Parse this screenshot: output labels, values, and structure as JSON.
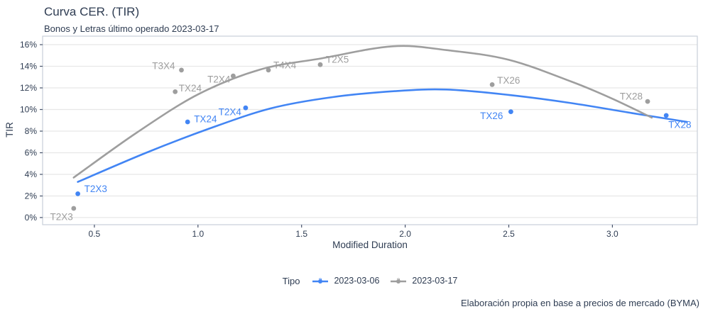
{
  "header": {
    "title": "Curva CER. (TIR)",
    "subtitle": "Bonos y Letras último operado 2023-03-17"
  },
  "footer": {
    "credit": "Elaboración propia en base a precios de mercado (BYMA)"
  },
  "chart_data": {
    "type": "scatter",
    "title": "Curva CER. (TIR)",
    "subtitle": "Bonos y Letras último operado 2023-03-17",
    "xlabel": "Modified Duration",
    "ylabel": "TIR",
    "xlim": [
      0.25,
      3.41
    ],
    "ylim": [
      -0.66,
      16.79
    ],
    "grid": "horizontal-major-only",
    "x_ticks": [
      {
        "value": 0.5,
        "label": "0.5"
      },
      {
        "value": 1.0,
        "label": "1.0"
      },
      {
        "value": 1.5,
        "label": "1.5"
      },
      {
        "value": 2.0,
        "label": "2.0"
      },
      {
        "value": 2.5,
        "label": "2.5"
      },
      {
        "value": 3.0,
        "label": "3.0"
      }
    ],
    "y_ticks": [
      {
        "value": 0,
        "label": "0%"
      },
      {
        "value": 2,
        "label": "2%"
      },
      {
        "value": 4,
        "label": "4%"
      },
      {
        "value": 6,
        "label": "6%"
      },
      {
        "value": 8,
        "label": "8%"
      },
      {
        "value": 10,
        "label": "10%"
      },
      {
        "value": 12,
        "label": "12%"
      },
      {
        "value": 14,
        "label": "14%"
      },
      {
        "value": 16,
        "label": "16%"
      }
    ],
    "legend": {
      "title": "Tipo",
      "position": "bottom"
    },
    "colors": {
      "axis_text": "#2e3c52",
      "gridline": "#e7e7e7",
      "panel_border": "#c9cfd8",
      "tick_mark": "#47536b"
    },
    "series": [
      {
        "name": "2023-03-06",
        "color": "#4285F4",
        "points": [
          {
            "bond": "T2X3",
            "x": 0.42,
            "y": 2.2,
            "anchor": "start",
            "dx": 9,
            "dy": -7
          },
          {
            "bond": "TX24",
            "x": 0.95,
            "y": 8.85,
            "anchor": "start",
            "dx": 9,
            "dy": -4
          },
          {
            "bond": "T2X4",
            "x": 1.23,
            "y": 10.15,
            "anchor": "end",
            "dx": -6,
            "dy": 6
          },
          {
            "bond": "TX26",
            "x": 2.51,
            "y": 9.8,
            "anchor": "end",
            "dx": -11,
            "dy": 6
          },
          {
            "bond": "TX28",
            "x": 3.26,
            "y": 9.45,
            "anchor": "start",
            "dx": 3,
            "dy": 13
          }
        ],
        "trend": [
          [
            0.42,
            3.3
          ],
          [
            0.75,
            6.0
          ],
          [
            1.05,
            8.2
          ],
          [
            1.35,
            10.1
          ],
          [
            1.65,
            11.15
          ],
          [
            1.95,
            11.7
          ],
          [
            2.2,
            11.85
          ],
          [
            2.5,
            11.35
          ],
          [
            2.8,
            10.6
          ],
          [
            3.1,
            9.65
          ],
          [
            3.36,
            8.85
          ]
        ]
      },
      {
        "name": "2023-03-17",
        "color": "#9E9E9E",
        "points": [
          {
            "bond": "T2X3",
            "x": 0.4,
            "y": 0.85,
            "anchor": "end",
            "dx": -1,
            "dy": 12
          },
          {
            "bond": "TX24",
            "x": 0.89,
            "y": 11.65,
            "anchor": "start",
            "dx": 5,
            "dy": -5
          },
          {
            "bond": "T3X4",
            "x": 0.92,
            "y": 13.65,
            "anchor": "end",
            "dx": -9,
            "dy": -6
          },
          {
            "bond": "T2X4",
            "x": 1.17,
            "y": 13.1,
            "anchor": "end",
            "dx": -4,
            "dy": 5
          },
          {
            "bond": "T4X4",
            "x": 1.34,
            "y": 13.65,
            "anchor": "start",
            "dx": 7,
            "dy": -7
          },
          {
            "bond": "T2X5",
            "x": 1.59,
            "y": 14.15,
            "anchor": "start",
            "dx": 8,
            "dy": -7
          },
          {
            "bond": "TX26",
            "x": 2.42,
            "y": 12.3,
            "anchor": "start",
            "dx": 7,
            "dy": -6
          },
          {
            "bond": "TX28",
            "x": 3.17,
            "y": 10.75,
            "anchor": "end",
            "dx": -7,
            "dy": -7
          }
        ],
        "trend": [
          [
            0.4,
            3.7
          ],
          [
            0.7,
            7.8
          ],
          [
            1.0,
            11.4
          ],
          [
            1.3,
            13.7
          ],
          [
            1.6,
            14.75
          ],
          [
            1.94,
            15.85
          ],
          [
            2.2,
            15.5
          ],
          [
            2.5,
            14.6
          ],
          [
            2.8,
            12.6
          ],
          [
            3.0,
            11.0
          ],
          [
            3.19,
            9.25
          ]
        ]
      }
    ]
  }
}
